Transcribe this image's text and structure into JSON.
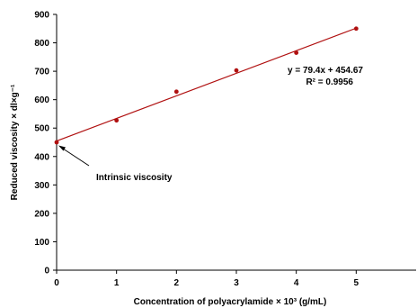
{
  "chart_data": {
    "type": "scatter",
    "xlabel": "Concentration of polyacrylamide × 10³ (g/mL)",
    "ylabel": "Reduced viscosity × dl×g⁻¹",
    "xlim": [
      0,
      6
    ],
    "ylim": [
      0,
      900
    ],
    "x_ticks": [
      0,
      1,
      2,
      3,
      4,
      5
    ],
    "y_ticks": [
      0,
      100,
      200,
      300,
      400,
      500,
      600,
      700,
      800,
      900
    ],
    "x_tick_labels": [
      "0",
      "1",
      "2",
      "3",
      "4",
      "5"
    ],
    "y_tick_labels": [
      "0",
      "100",
      "200",
      "300",
      "400",
      "500",
      "600",
      "700",
      "800",
      "900"
    ],
    "grid": false,
    "series": [
      {
        "x": [
          0,
          1,
          2,
          3,
          4,
          5
        ],
        "y": [
          450,
          527,
          628,
          703,
          765,
          850
        ],
        "color": "#b01010"
      }
    ],
    "trendline": {
      "slope": 79.4,
      "intercept": 454.67,
      "x_range": [
        0,
        5
      ],
      "color": "#b01010"
    },
    "equation": "y = 79.4x + 454.67",
    "r_squared": "R² = 0.9956",
    "annotation": {
      "text": "Intrinsic viscosity",
      "x": 0,
      "y": 450
    }
  }
}
